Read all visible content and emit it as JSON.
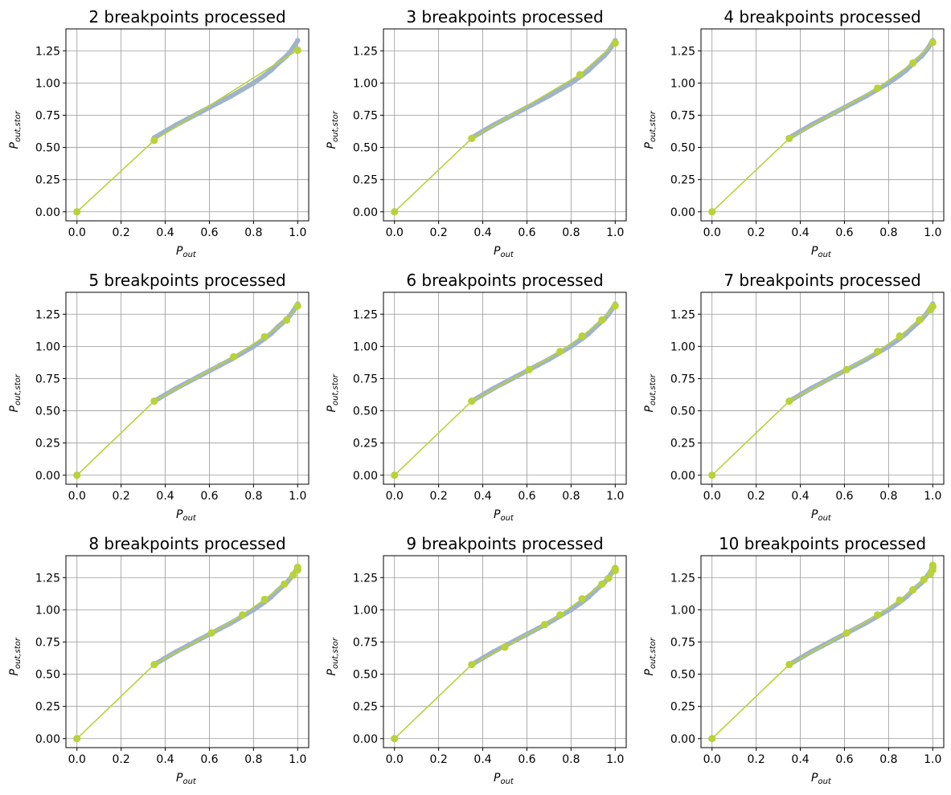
{
  "figure": {
    "background": "#ffffff",
    "colors": {
      "sample": "#9fb4c8",
      "fit": "#b8d23a",
      "grid": "#999999",
      "axes": "#000000"
    }
  },
  "chart_data": [
    {
      "type": "scatter",
      "title": "2 breakpoints processed",
      "xlabel": "P_out",
      "ylabel": "P_out,stor",
      "xlim": [
        -0.05,
        1.05
      ],
      "ylim": [
        -0.07,
        1.42
      ],
      "xticks": [
        0.0,
        0.2,
        0.4,
        0.6,
        0.8,
        1.0
      ],
      "xtick_labels": [
        "0.0",
        "0.2",
        "0.4",
        "0.6",
        "0.8",
        "1.0"
      ],
      "yticks": [
        0.0,
        0.25,
        0.5,
        0.75,
        1.0,
        1.25
      ],
      "ytick_labels": [
        "0.00",
        "0.25",
        "0.50",
        "0.75",
        "1.00",
        "1.25"
      ],
      "grid": true,
      "series": [
        {
          "role": "samples",
          "color": "#9fb4c8",
          "x": [
            0.35,
            0.4,
            0.45,
            0.5,
            0.55,
            0.6,
            0.65,
            0.7,
            0.75,
            0.8,
            0.85,
            0.88,
            0.91,
            0.93,
            0.95,
            0.97,
            0.98,
            0.99,
            1.0
          ],
          "y": [
            0.575,
            0.625,
            0.675,
            0.72,
            0.765,
            0.81,
            0.855,
            0.9,
            0.95,
            1.0,
            1.06,
            1.1,
            1.15,
            1.18,
            1.21,
            1.25,
            1.275,
            1.3,
            1.33
          ]
        },
        {
          "role": "fit",
          "color": "#b8d23a",
          "x": [
            0.0,
            0.35,
            1.0
          ],
          "y": [
            0.0,
            0.555,
            1.255
          ]
        }
      ]
    },
    {
      "type": "scatter",
      "title": "3 breakpoints processed",
      "xlabel": "P_out",
      "ylabel": "P_out,stor",
      "xlim": [
        -0.05,
        1.05
      ],
      "ylim": [
        -0.07,
        1.42
      ],
      "xticks": [
        0.0,
        0.2,
        0.4,
        0.6,
        0.8,
        1.0
      ],
      "xtick_labels": [
        "0.0",
        "0.2",
        "0.4",
        "0.6",
        "0.8",
        "1.0"
      ],
      "yticks": [
        0.0,
        0.25,
        0.5,
        0.75,
        1.0,
        1.25
      ],
      "ytick_labels": [
        "0.00",
        "0.25",
        "0.50",
        "0.75",
        "1.00",
        "1.25"
      ],
      "grid": true,
      "series": [
        {
          "role": "samples",
          "color": "#9fb4c8",
          "x": [
            0.35,
            0.4,
            0.45,
            0.5,
            0.55,
            0.6,
            0.65,
            0.7,
            0.75,
            0.8,
            0.85,
            0.88,
            0.91,
            0.93,
            0.95,
            0.97,
            0.98,
            0.99,
            1.0
          ],
          "y": [
            0.575,
            0.625,
            0.675,
            0.72,
            0.765,
            0.81,
            0.855,
            0.9,
            0.95,
            1.0,
            1.06,
            1.1,
            1.15,
            1.18,
            1.21,
            1.25,
            1.275,
            1.3,
            1.33
          ]
        },
        {
          "role": "fit",
          "color": "#b8d23a",
          "x": [
            0.0,
            0.35,
            0.84,
            1.0
          ],
          "y": [
            0.0,
            0.57,
            1.065,
            1.31
          ]
        }
      ]
    },
    {
      "type": "scatter",
      "title": "4 breakpoints processed",
      "xlabel": "P_out",
      "ylabel": "P_out,stor",
      "xlim": [
        -0.05,
        1.05
      ],
      "ylim": [
        -0.07,
        1.42
      ],
      "xticks": [
        0.0,
        0.2,
        0.4,
        0.6,
        0.8,
        1.0
      ],
      "xtick_labels": [
        "0.0",
        "0.2",
        "0.4",
        "0.6",
        "0.8",
        "1.0"
      ],
      "yticks": [
        0.0,
        0.25,
        0.5,
        0.75,
        1.0,
        1.25
      ],
      "ytick_labels": [
        "0.00",
        "0.25",
        "0.50",
        "0.75",
        "1.00",
        "1.25"
      ],
      "grid": true,
      "series": [
        {
          "role": "samples",
          "color": "#9fb4c8",
          "x": [
            0.35,
            0.4,
            0.45,
            0.5,
            0.55,
            0.6,
            0.65,
            0.7,
            0.75,
            0.8,
            0.85,
            0.88,
            0.91,
            0.93,
            0.95,
            0.97,
            0.98,
            0.99,
            1.0
          ],
          "y": [
            0.575,
            0.625,
            0.675,
            0.72,
            0.765,
            0.81,
            0.855,
            0.9,
            0.95,
            1.0,
            1.06,
            1.1,
            1.15,
            1.18,
            1.21,
            1.25,
            1.275,
            1.3,
            1.33
          ]
        },
        {
          "role": "fit",
          "color": "#b8d23a",
          "x": [
            0.0,
            0.35,
            0.75,
            0.91,
            1.0
          ],
          "y": [
            0.0,
            0.57,
            0.96,
            1.155,
            1.315
          ]
        }
      ]
    },
    {
      "type": "scatter",
      "title": "5 breakpoints processed",
      "xlabel": "P_out",
      "ylabel": "P_out,stor",
      "xlim": [
        -0.05,
        1.05
      ],
      "ylim": [
        -0.07,
        1.42
      ],
      "xticks": [
        0.0,
        0.2,
        0.4,
        0.6,
        0.8,
        1.0
      ],
      "xtick_labels": [
        "0.0",
        "0.2",
        "0.4",
        "0.6",
        "0.8",
        "1.0"
      ],
      "yticks": [
        0.0,
        0.25,
        0.5,
        0.75,
        1.0,
        1.25
      ],
      "ytick_labels": [
        "0.00",
        "0.25",
        "0.50",
        "0.75",
        "1.00",
        "1.25"
      ],
      "grid": true,
      "series": [
        {
          "role": "samples",
          "color": "#9fb4c8",
          "x": [
            0.35,
            0.4,
            0.45,
            0.5,
            0.55,
            0.6,
            0.65,
            0.7,
            0.75,
            0.8,
            0.85,
            0.88,
            0.91,
            0.93,
            0.95,
            0.97,
            0.98,
            0.99,
            1.0
          ],
          "y": [
            0.575,
            0.625,
            0.675,
            0.72,
            0.765,
            0.81,
            0.855,
            0.9,
            0.95,
            1.0,
            1.06,
            1.1,
            1.15,
            1.18,
            1.21,
            1.25,
            1.275,
            1.3,
            1.33
          ]
        },
        {
          "role": "fit",
          "color": "#b8d23a",
          "x": [
            0.0,
            0.35,
            0.71,
            0.85,
            0.95,
            1.0
          ],
          "y": [
            0.0,
            0.575,
            0.92,
            1.075,
            1.205,
            1.315
          ]
        }
      ]
    },
    {
      "type": "scatter",
      "title": "6 breakpoints processed",
      "xlabel": "P_out",
      "ylabel": "P_out,stor",
      "xlim": [
        -0.05,
        1.05
      ],
      "ylim": [
        -0.07,
        1.42
      ],
      "xticks": [
        0.0,
        0.2,
        0.4,
        0.6,
        0.8,
        1.0
      ],
      "xtick_labels": [
        "0.0",
        "0.2",
        "0.4",
        "0.6",
        "0.8",
        "1.0"
      ],
      "yticks": [
        0.0,
        0.25,
        0.5,
        0.75,
        1.0,
        1.25
      ],
      "ytick_labels": [
        "0.00",
        "0.25",
        "0.50",
        "0.75",
        "1.00",
        "1.25"
      ],
      "grid": true,
      "series": [
        {
          "role": "samples",
          "color": "#9fb4c8",
          "x": [
            0.35,
            0.4,
            0.45,
            0.5,
            0.55,
            0.6,
            0.65,
            0.7,
            0.75,
            0.8,
            0.85,
            0.88,
            0.91,
            0.93,
            0.95,
            0.97,
            0.98,
            0.99,
            1.0
          ],
          "y": [
            0.575,
            0.625,
            0.675,
            0.72,
            0.765,
            0.81,
            0.855,
            0.9,
            0.95,
            1.0,
            1.06,
            1.1,
            1.15,
            1.18,
            1.21,
            1.25,
            1.275,
            1.3,
            1.33
          ]
        },
        {
          "role": "fit",
          "color": "#b8d23a",
          "x": [
            0.0,
            0.35,
            0.61,
            0.75,
            0.85,
            0.94,
            1.0
          ],
          "y": [
            0.0,
            0.575,
            0.82,
            0.96,
            1.08,
            1.205,
            1.315
          ]
        }
      ]
    },
    {
      "type": "scatter",
      "title": "7 breakpoints processed",
      "xlabel": "P_out",
      "ylabel": "P_out,stor",
      "xlim": [
        -0.05,
        1.05
      ],
      "ylim": [
        -0.07,
        1.42
      ],
      "xticks": [
        0.0,
        0.2,
        0.4,
        0.6,
        0.8,
        1.0
      ],
      "xtick_labels": [
        "0.0",
        "0.2",
        "0.4",
        "0.6",
        "0.8",
        "1.0"
      ],
      "yticks": [
        0.0,
        0.25,
        0.5,
        0.75,
        1.0,
        1.25
      ],
      "ytick_labels": [
        "0.00",
        "0.25",
        "0.50",
        "0.75",
        "1.00",
        "1.25"
      ],
      "grid": true,
      "series": [
        {
          "role": "samples",
          "color": "#9fb4c8",
          "x": [
            0.35,
            0.4,
            0.45,
            0.5,
            0.55,
            0.6,
            0.65,
            0.7,
            0.75,
            0.8,
            0.85,
            0.88,
            0.91,
            0.93,
            0.95,
            0.97,
            0.98,
            0.99,
            1.0
          ],
          "y": [
            0.575,
            0.625,
            0.675,
            0.72,
            0.765,
            0.81,
            0.855,
            0.9,
            0.95,
            1.0,
            1.06,
            1.1,
            1.15,
            1.18,
            1.21,
            1.25,
            1.275,
            1.3,
            1.33
          ]
        },
        {
          "role": "fit",
          "color": "#b8d23a",
          "x": [
            0.0,
            0.35,
            0.61,
            0.75,
            0.85,
            0.94,
            0.99,
            1.0
          ],
          "y": [
            0.0,
            0.575,
            0.82,
            0.96,
            1.08,
            1.205,
            1.285,
            1.31
          ]
        }
      ]
    },
    {
      "type": "scatter",
      "title": "8 breakpoints processed",
      "xlabel": "P_out",
      "ylabel": "P_out,stor",
      "xlim": [
        -0.05,
        1.05
      ],
      "ylim": [
        -0.07,
        1.42
      ],
      "xticks": [
        0.0,
        0.2,
        0.4,
        0.6,
        0.8,
        1.0
      ],
      "xtick_labels": [
        "0.0",
        "0.2",
        "0.4",
        "0.6",
        "0.8",
        "1.0"
      ],
      "yticks": [
        0.0,
        0.25,
        0.5,
        0.75,
        1.0,
        1.25
      ],
      "ytick_labels": [
        "0.00",
        "0.25",
        "0.50",
        "0.75",
        "1.00",
        "1.25"
      ],
      "grid": true,
      "series": [
        {
          "role": "samples",
          "color": "#9fb4c8",
          "x": [
            0.35,
            0.4,
            0.45,
            0.5,
            0.55,
            0.6,
            0.65,
            0.7,
            0.75,
            0.8,
            0.85,
            0.88,
            0.91,
            0.93,
            0.95,
            0.97,
            0.98,
            0.99,
            1.0
          ],
          "y": [
            0.575,
            0.625,
            0.675,
            0.72,
            0.765,
            0.81,
            0.855,
            0.9,
            0.95,
            1.0,
            1.06,
            1.1,
            1.15,
            1.18,
            1.21,
            1.25,
            1.275,
            1.3,
            1.33
          ]
        },
        {
          "role": "fit",
          "color": "#b8d23a",
          "x": [
            0.0,
            0.35,
            0.61,
            0.75,
            0.85,
            0.94,
            0.98,
            1.0,
            1.0
          ],
          "y": [
            0.0,
            0.575,
            0.82,
            0.96,
            1.08,
            1.2,
            1.27,
            1.31,
            1.33
          ]
        }
      ]
    },
    {
      "type": "scatter",
      "title": "9 breakpoints processed",
      "xlabel": "P_out",
      "ylabel": "P_out,stor",
      "xlim": [
        -0.05,
        1.05
      ],
      "ylim": [
        -0.07,
        1.42
      ],
      "xticks": [
        0.0,
        0.2,
        0.4,
        0.6,
        0.8,
        1.0
      ],
      "xtick_labels": [
        "0.0",
        "0.2",
        "0.4",
        "0.6",
        "0.8",
        "1.0"
      ],
      "yticks": [
        0.0,
        0.25,
        0.5,
        0.75,
        1.0,
        1.25
      ],
      "ytick_labels": [
        "0.00",
        "0.25",
        "0.50",
        "0.75",
        "1.00",
        "1.25"
      ],
      "grid": true,
      "series": [
        {
          "role": "samples",
          "color": "#9fb4c8",
          "x": [
            0.35,
            0.4,
            0.45,
            0.5,
            0.55,
            0.6,
            0.65,
            0.7,
            0.75,
            0.8,
            0.85,
            0.88,
            0.91,
            0.93,
            0.95,
            0.97,
            0.98,
            0.99,
            1.0
          ],
          "y": [
            0.575,
            0.625,
            0.675,
            0.72,
            0.765,
            0.81,
            0.855,
            0.9,
            0.95,
            1.0,
            1.06,
            1.1,
            1.15,
            1.18,
            1.21,
            1.25,
            1.275,
            1.3,
            1.33
          ]
        },
        {
          "role": "fit",
          "color": "#b8d23a",
          "x": [
            0.0,
            0.35,
            0.5,
            0.68,
            0.75,
            0.85,
            0.94,
            0.97,
            1.0,
            1.0
          ],
          "y": [
            0.0,
            0.575,
            0.71,
            0.885,
            0.96,
            1.085,
            1.2,
            1.245,
            1.305,
            1.32
          ]
        }
      ]
    },
    {
      "type": "scatter",
      "title": "10 breakpoints processed",
      "xlabel": "P_out",
      "ylabel": "P_out,stor",
      "xlim": [
        -0.05,
        1.05
      ],
      "ylim": [
        -0.07,
        1.42
      ],
      "xticks": [
        0.0,
        0.2,
        0.4,
        0.6,
        0.8,
        1.0
      ],
      "xtick_labels": [
        "0.0",
        "0.2",
        "0.4",
        "0.6",
        "0.8",
        "1.0"
      ],
      "yticks": [
        0.0,
        0.25,
        0.5,
        0.75,
        1.0,
        1.25
      ],
      "ytick_labels": [
        "0.00",
        "0.25",
        "0.50",
        "0.75",
        "1.00",
        "1.25"
      ],
      "grid": true,
      "series": [
        {
          "role": "samples",
          "color": "#9fb4c8",
          "x": [
            0.35,
            0.4,
            0.45,
            0.5,
            0.55,
            0.6,
            0.65,
            0.7,
            0.75,
            0.8,
            0.85,
            0.88,
            0.91,
            0.93,
            0.95,
            0.97,
            0.98,
            0.99,
            1.0
          ],
          "y": [
            0.575,
            0.625,
            0.675,
            0.72,
            0.765,
            0.81,
            0.855,
            0.9,
            0.95,
            1.0,
            1.06,
            1.1,
            1.15,
            1.18,
            1.21,
            1.25,
            1.275,
            1.3,
            1.33
          ]
        },
        {
          "role": "fit",
          "color": "#b8d23a",
          "x": [
            0.0,
            0.35,
            0.61,
            0.75,
            0.85,
            0.91,
            0.96,
            0.99,
            1.0,
            1.0,
            1.0
          ],
          "y": [
            0.0,
            0.575,
            0.82,
            0.96,
            1.075,
            1.155,
            1.235,
            1.28,
            1.31,
            1.325,
            1.345
          ]
        }
      ]
    }
  ]
}
